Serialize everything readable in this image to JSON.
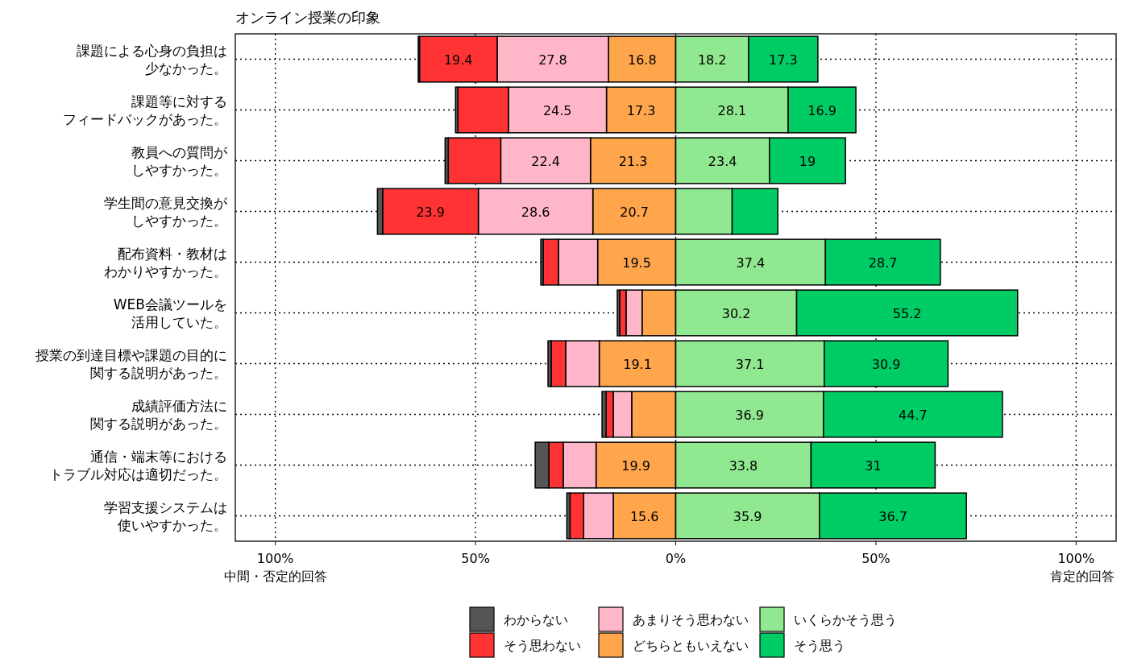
{
  "chart_data": {
    "type": "bar",
    "orientation": "horizontal",
    "title": "オンライン授業の印象",
    "categories": [
      "課題による心身の負担は少なかった。",
      "課題等に対するフィードバックがあった。",
      "教員への質問がしやすかった。",
      "学生間の意見交換がしやすかった。",
      "配布資料・教材はわかりやすかった。",
      "WEB会議ツールを活用していた。",
      "授業の到達目標や課題の目的に関する説明があった。",
      "成績評価方法に関する説明があった。",
      "通信・端末等におけるトラブル対応は適切だった。",
      "学習支援システムは使いやすかった。"
    ],
    "series": [
      {
        "name": "どちらともいえない",
        "color": "#ffa64d",
        "base": [
          -16.8,
          -17.3,
          -21.3,
          -20.7,
          -19.5,
          -8.4,
          -19.1,
          -11.0,
          -19.9,
          -15.6
        ],
        "values": [
          16.8,
          17.3,
          21.3,
          20.7,
          19.5,
          8.4,
          19.1,
          11.0,
          19.9,
          15.6
        ],
        "value_labels": [
          "16.8",
          "17.3",
          "21.3",
          "20.7",
          "19.5",
          null,
          "19.1",
          null,
          "19.9",
          "15.6"
        ]
      },
      {
        "name": "あまりそう思わない",
        "color": "#ffb6c8",
        "base": [
          -44.6,
          -41.8,
          -43.7,
          -49.3,
          -29.3,
          -12.4,
          -27.5,
          -15.6,
          -28.1,
          -23.0
        ],
        "values": [
          27.8,
          24.5,
          22.4,
          28.6,
          9.8,
          4.0,
          8.4,
          4.6,
          8.2,
          7.4
        ],
        "value_labels": [
          "27.8",
          "24.5",
          "22.4",
          "28.6",
          null,
          null,
          null,
          null,
          null,
          null
        ]
      },
      {
        "name": "そう思わない",
        "color": "#ff3333",
        "base": [
          -64.0,
          -54.4,
          -56.8,
          -73.2,
          -33.1,
          -14.0,
          -31.1,
          -17.4,
          -31.7,
          -26.4
        ],
        "values": [
          19.4,
          12.6,
          13.1,
          23.9,
          3.8,
          1.6,
          3.6,
          1.8,
          3.6,
          3.4
        ],
        "value_labels": [
          "19.4",
          null,
          null,
          "23.9",
          null,
          null,
          null,
          null,
          null,
          null
        ]
      },
      {
        "name": "わからない",
        "color": "#555555",
        "base": [
          -64.3,
          -55.0,
          -57.6,
          -74.5,
          -33.7,
          -14.6,
          -31.9,
          -18.4,
          -35.1,
          -27.2
        ],
        "values": [
          0.3,
          0.6,
          0.8,
          1.3,
          0.6,
          0.6,
          0.8,
          1.0,
          3.4,
          0.8
        ]
      },
      {
        "name": "いくらかそう思う",
        "color": "#90e890",
        "base": [
          0,
          0,
          0,
          0,
          0,
          0,
          0,
          0,
          0,
          0
        ],
        "values": [
          18.2,
          28.1,
          23.4,
          14.1,
          37.4,
          30.2,
          37.1,
          36.9,
          33.8,
          35.9
        ],
        "value_labels": [
          "18.2",
          "28.1",
          "23.4",
          null,
          "37.4",
          "30.2",
          "37.1",
          "36.9",
          "33.8",
          "35.9"
        ]
      },
      {
        "name": "そう思う",
        "color": "#00cc66",
        "base": [
          18.2,
          28.1,
          23.4,
          14.1,
          37.4,
          30.2,
          37.1,
          36.9,
          33.8,
          35.9
        ],
        "values": [
          17.3,
          16.9,
          19,
          11.4,
          28.7,
          55.2,
          30.9,
          44.7,
          31,
          36.7
        ],
        "value_labels": [
          "17.3",
          "16.9",
          "19",
          null,
          "28.7",
          "55.2",
          "30.9",
          "44.7",
          "31",
          "36.7"
        ]
      }
    ],
    "xlim": [
      -110,
      110
    ],
    "xticks": [
      {
        "value": -100,
        "label": "100%"
      },
      {
        "value": -50,
        "label": "50%"
      },
      {
        "value": 0,
        "label": "0%"
      },
      {
        "value": 50,
        "label": "50%"
      },
      {
        "value": 100,
        "label": "100%"
      }
    ],
    "grid": true,
    "line_style": "dotted",
    "legend": "bottom",
    "annotations": [
      "中間・否定的回答",
      "肯定的回答"
    ]
  }
}
